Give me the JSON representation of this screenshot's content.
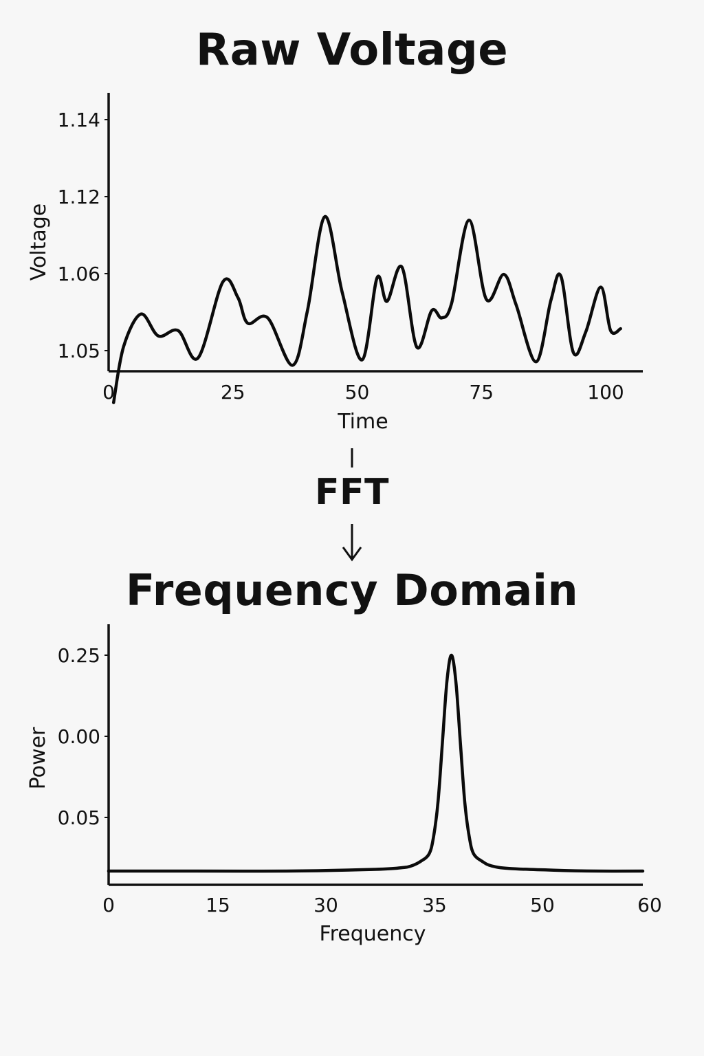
{
  "top_title": "Raw Voltage",
  "fft_label": "FFT",
  "bottom_title": "Frequency Domain",
  "colors": {
    "line": "#0b0b0b",
    "axis": "#111111",
    "background": "#f7f7f7"
  },
  "chart_data": [
    {
      "type": "line",
      "title": "Raw Voltage",
      "xlabel": "Time",
      "ylabel": "Voltage",
      "x_ticks": [
        0,
        25,
        50,
        75,
        100
      ],
      "x_tick_labels": [
        "0",
        "25",
        "50",
        "75",
        "100"
      ],
      "y_tick_labels": [
        "1.14",
        "1.12",
        "1.06",
        "1.05"
      ],
      "xlim": [
        0,
        105
      ],
      "grid": false,
      "series": [
        {
          "x": [
            1,
            3,
            6.5,
            10,
            14,
            18,
            23,
            26,
            28,
            32,
            37,
            40,
            43.5,
            47,
            51,
            54,
            56,
            59,
            62,
            65,
            67,
            69,
            72.5,
            76,
            79.5,
            82,
            86,
            89,
            91,
            93.5,
            96,
            99,
            101,
            103
          ],
          "y": [
            1.0665,
            1.081,
            1.0895,
            1.0838,
            1.0852,
            1.0781,
            1.0979,
            1.0938,
            1.0871,
            1.0885,
            1.0762,
            1.0904,
            1.1148,
            1.0951,
            1.0776,
            1.0989,
            1.0928,
            1.1017,
            1.0809,
            1.0904,
            1.0885,
            1.0923,
            1.1139,
            1.0933,
            1.0998,
            1.0918,
            1.0771,
            1.0932,
            1.0993,
            1.0795,
            1.0849,
            1.0965,
            1.0852,
            1.0857
          ]
        }
      ]
    },
    {
      "type": "line",
      "title": "Frequency Domain",
      "xlabel": "Frequency",
      "ylabel": "Power",
      "x_tick_labels": [
        "0",
        "15",
        "30",
        "35",
        "50",
        "60"
      ],
      "y_tick_labels": [
        "0.25",
        "0.00",
        "0.05"
      ],
      "grid": false,
      "series": [
        {
          "peak_frequency": 38.5,
          "peak_power": 0.25,
          "baseline_power": 0.0,
          "x": [
            0,
            10,
            20,
            30,
            33,
            34,
            35,
            36,
            36.5,
            37,
            37.5,
            38,
            38.5,
            39,
            39.5,
            40,
            40.5,
            41,
            42,
            43,
            45,
            50,
            55,
            60
          ],
          "y": [
            0.0,
            0.0,
            0.0,
            0.002,
            0.004,
            0.006,
            0.011,
            0.02,
            0.04,
            0.08,
            0.15,
            0.22,
            0.25,
            0.22,
            0.15,
            0.08,
            0.04,
            0.02,
            0.011,
            0.006,
            0.003,
            0.001,
            0.0,
            0.0
          ]
        }
      ]
    }
  ]
}
